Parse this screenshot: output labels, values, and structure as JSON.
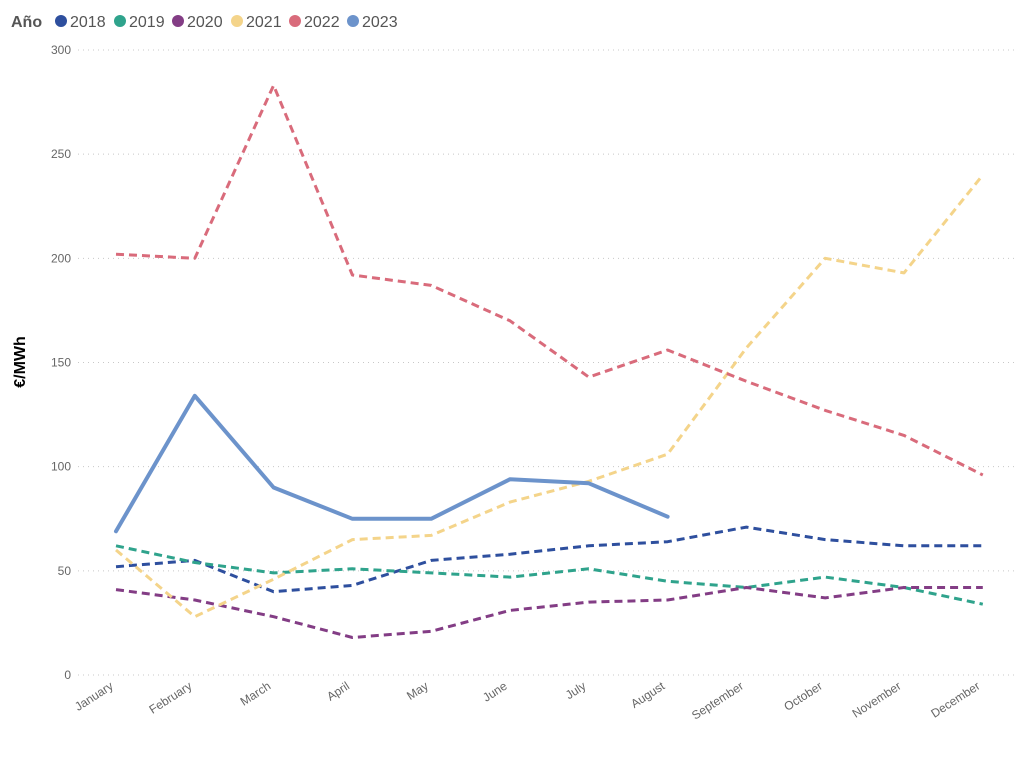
{
  "chart_data": {
    "type": "line",
    "title": "",
    "ylabel": "€/MWh",
    "xlabel": "",
    "ylim": [
      0,
      300
    ],
    "yticks": [
      0,
      50,
      100,
      150,
      200,
      250,
      300
    ],
    "grid": true,
    "legend": {
      "title": "Año",
      "position": "top-left"
    },
    "categories": [
      "January",
      "February",
      "March",
      "April",
      "May",
      "June",
      "July",
      "August",
      "September",
      "October",
      "November",
      "December"
    ],
    "series": [
      {
        "name": "2018",
        "color": "#2e4f9e",
        "style": "dashed",
        "values": [
          52,
          55,
          40,
          43,
          55,
          58,
          62,
          64,
          71,
          65,
          62,
          62
        ]
      },
      {
        "name": "2019",
        "color": "#2fa38c",
        "style": "dashed",
        "values": [
          62,
          54,
          49,
          51,
          49,
          47,
          51,
          45,
          42,
          47,
          42,
          34
        ]
      },
      {
        "name": "2020",
        "color": "#833d85",
        "style": "dashed",
        "values": [
          41,
          36,
          28,
          18,
          21,
          31,
          35,
          36,
          42,
          37,
          42,
          42
        ]
      },
      {
        "name": "2021",
        "color": "#f4d48a",
        "style": "dashed",
        "values": [
          60,
          28,
          46,
          65,
          67,
          83,
          93,
          106,
          157,
          200,
          193,
          240
        ]
      },
      {
        "name": "2022",
        "color": "#d96b7b",
        "style": "dashed",
        "values": [
          202,
          200,
          283,
          192,
          187,
          170,
          143,
          156,
          141,
          127,
          115,
          96
        ]
      },
      {
        "name": "2023",
        "color": "#6c93cb",
        "style": "solid",
        "values": [
          69,
          134,
          90,
          75,
          75,
          94,
          92,
          76,
          null,
          null,
          null,
          null
        ]
      }
    ]
  }
}
